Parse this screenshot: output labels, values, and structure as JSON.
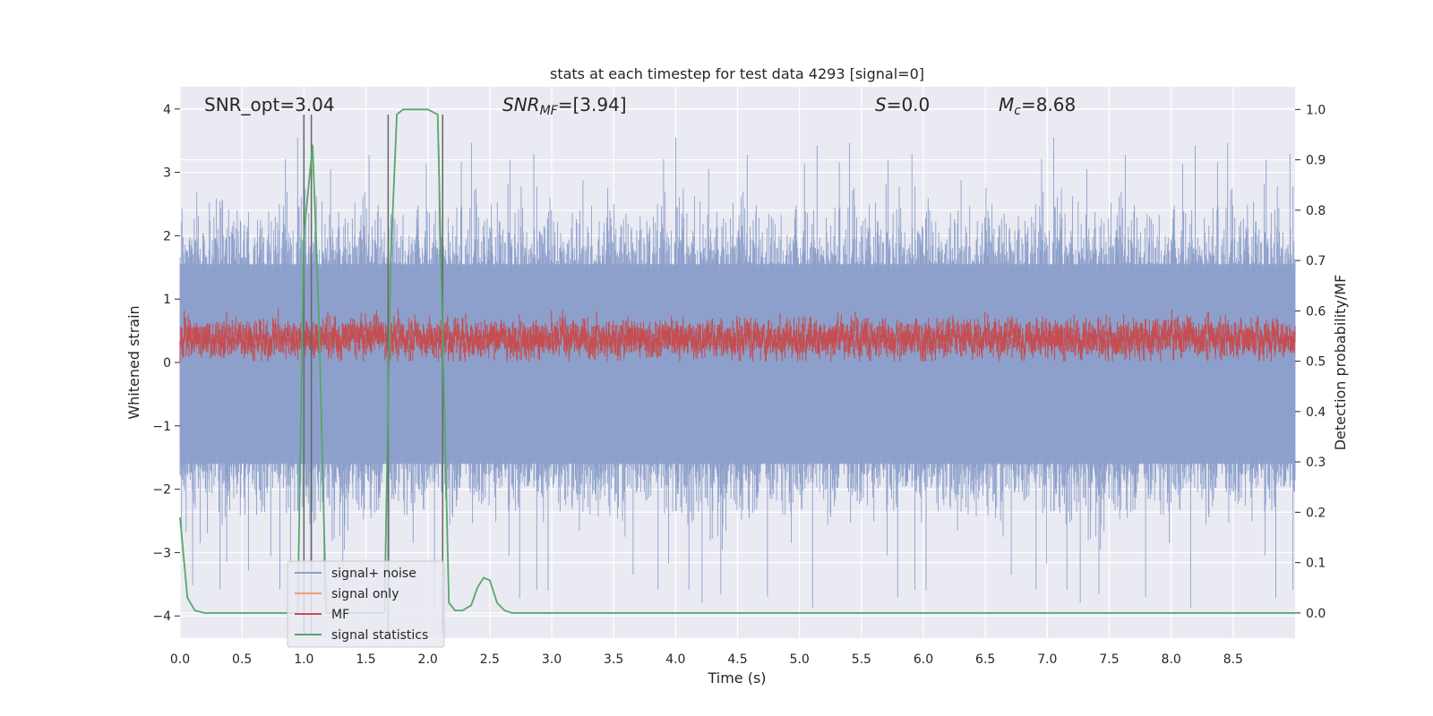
{
  "chart_data": {
    "type": "line",
    "title": "stats at each timestep for test data 4293 [signal=0]",
    "xlabel": "Time (s)",
    "ylabel": "Whitened strain",
    "y2label": "Detection probability/MF",
    "xlim": [
      0,
      9.0
    ],
    "ylim": [
      -4.35,
      4.35
    ],
    "y2lim": [
      -0.05,
      1.045
    ],
    "x_ticks": [
      "0.0",
      "0.5",
      "1.0",
      "1.5",
      "2.0",
      "2.5",
      "3.0",
      "3.5",
      "4.0",
      "4.5",
      "5.0",
      "5.5",
      "6.0",
      "6.5",
      "7.0",
      "7.5",
      "8.0",
      "8.5"
    ],
    "y_ticks": [
      "4",
      "3",
      "2",
      "1",
      "0",
      "−1",
      "−2",
      "−3",
      "−4"
    ],
    "y2_ticks": [
      "1.0",
      "0.9",
      "0.8",
      "0.7",
      "0.6",
      "0.5",
      "0.4",
      "0.3",
      "0.2",
      "0.1",
      "0.0"
    ],
    "grid": true,
    "legend_position": "lower-left",
    "annotations": [
      {
        "text": "SNR_opt=3.04",
        "x": 0.2
      },
      {
        "text": "SNR_MF=[3.94]",
        "x": 2.6
      },
      {
        "text": "S=0.0",
        "x": 5.6
      },
      {
        "text": "M_c=8.68",
        "x": 6.6
      }
    ],
    "series": [
      {
        "name": "signal+ noise",
        "color": "#8da0cb",
        "axis": "left",
        "style": "noise",
        "envelope_rms": 1.0
      },
      {
        "name": "signal only",
        "color": "#e8a07a",
        "axis": "left",
        "values": []
      },
      {
        "name": "MF",
        "color": "#c44e52",
        "axis": "right",
        "style": "band",
        "band_range": [
          0.5,
          0.6
        ]
      },
      {
        "name": "signal statistics",
        "color": "#55a868",
        "axis": "right",
        "x": [
          0.0,
          0.06,
          0.12,
          0.2,
          0.3,
          0.5,
          0.7,
          0.85,
          0.95,
          1.0,
          1.07,
          1.12,
          1.18,
          1.3,
          1.5,
          1.65,
          1.7,
          1.75,
          1.8,
          1.9,
          2.0,
          2.08,
          2.12,
          2.17,
          2.22,
          2.28,
          2.35,
          2.4,
          2.45,
          2.5,
          2.56,
          2.62,
          2.68,
          2.75,
          3.0,
          4.0,
          5.0,
          6.0,
          7.0,
          8.0,
          9.0
        ],
        "values": [
          0.19,
          0.03,
          0.005,
          0.0,
          0.0,
          0.0,
          0.0,
          0.0,
          0.0,
          0.75,
          0.93,
          0.6,
          0.0,
          0.0,
          0.0,
          0.0,
          0.7,
          0.99,
          1.0,
          1.0,
          1.0,
          0.99,
          0.55,
          0.02,
          0.005,
          0.005,
          0.015,
          0.05,
          0.07,
          0.065,
          0.02,
          0.005,
          0.0,
          0.0,
          0.0,
          0.0,
          0.0,
          0.0,
          0.0,
          0.0,
          0.0
        ]
      }
    ],
    "vertical_markers": [
      {
        "x": 1.0,
        "y_top": 0.99
      },
      {
        "x": 1.06,
        "y_top": 0.99
      },
      {
        "x": 1.68,
        "y_top": 0.99
      },
      {
        "x": 2.12,
        "y_top": 0.99
      }
    ]
  }
}
